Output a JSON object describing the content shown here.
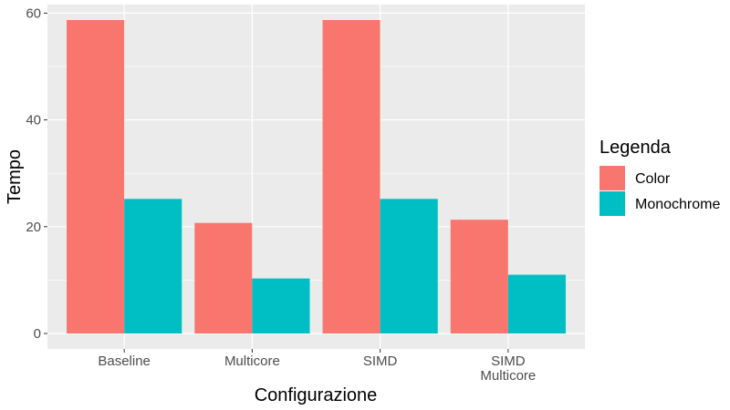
{
  "chart_data": {
    "type": "bar",
    "categories": [
      [
        "Baseline"
      ],
      [
        "Multicore"
      ],
      [
        "SIMD"
      ],
      [
        "SIMD",
        "Multicore"
      ]
    ],
    "series": [
      {
        "name": "Color",
        "values": [
          58.7,
          20.7,
          58.7,
          21.3
        ],
        "color": "#F8766D"
      },
      {
        "name": "Monochrome",
        "values": [
          25.2,
          10.3,
          25.2,
          11.0
        ],
        "color": "#00BFC4"
      }
    ],
    "xlabel": "Configurazione",
    "ylabel": "Tempo",
    "ylim": [
      -2.9,
      61.6
    ],
    "yticks": [
      0,
      20,
      40,
      60
    ],
    "grid": true,
    "legend": {
      "title": "Legenda",
      "position": "right"
    },
    "panel_background": "#EBEBEB",
    "gridline_color": "#FFFFFF"
  }
}
